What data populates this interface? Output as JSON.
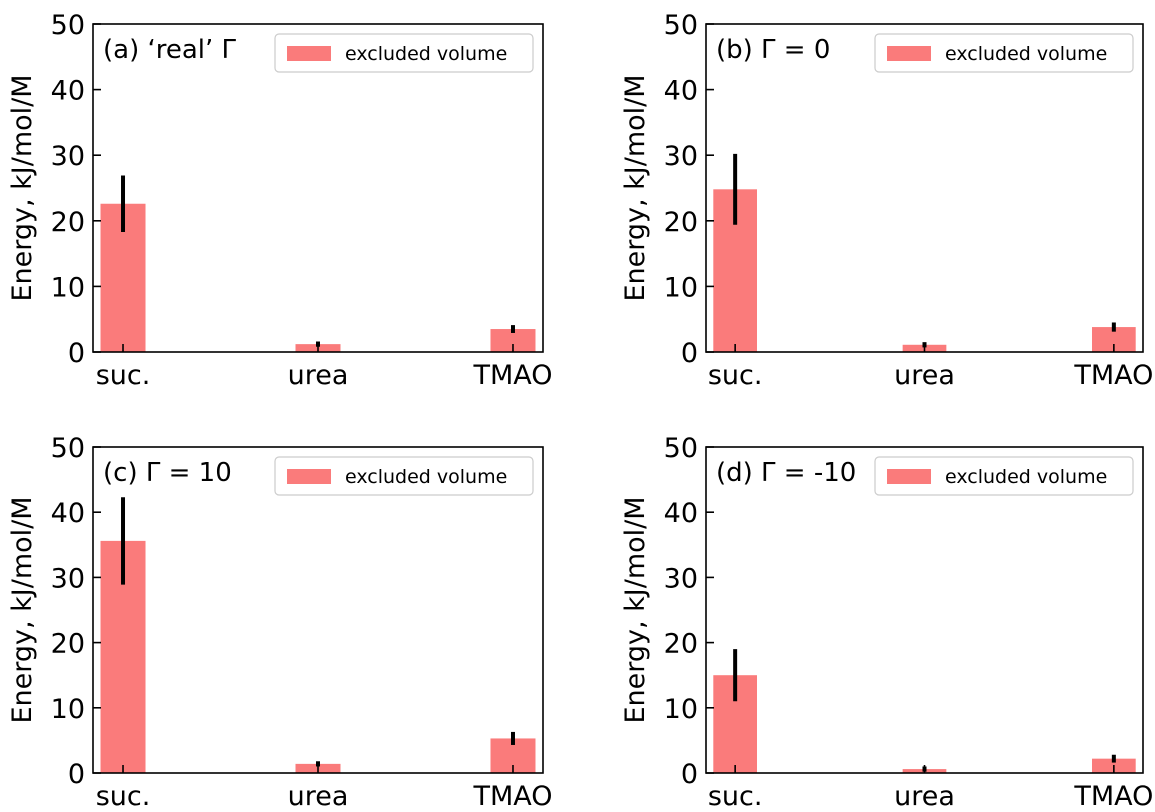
{
  "chart_data": [
    {
      "type": "bar",
      "panel_label": "(a) ‘real’ Γ",
      "categories": [
        "suc.",
        "urea",
        "TMAO"
      ],
      "series": [
        {
          "name": "excluded volume",
          "values": [
            22.6,
            1.2,
            3.5
          ],
          "errors": [
            4.3,
            0.4,
            0.6
          ]
        }
      ],
      "ylabel": "Energy, kJ/mol/M",
      "ylim": [
        0,
        50
      ],
      "yticks": [
        0,
        10,
        20,
        30,
        40,
        50
      ],
      "legend_placement": "top-right",
      "grid": false,
      "bar_color": "#fa7b7b",
      "error_color": "#000000"
    },
    {
      "type": "bar",
      "panel_label": "(b) Γ = 0",
      "categories": [
        "suc.",
        "urea",
        "TMAO"
      ],
      "series": [
        {
          "name": "excluded volume",
          "values": [
            24.8,
            1.1,
            3.8
          ],
          "errors": [
            5.4,
            0.4,
            0.7
          ]
        }
      ],
      "ylabel": "Energy, kJ/mol/M",
      "ylim": [
        0,
        50
      ],
      "yticks": [
        0,
        10,
        20,
        30,
        40,
        50
      ],
      "legend_placement": "top-right",
      "grid": false,
      "bar_color": "#fa7b7b",
      "error_color": "#000000"
    },
    {
      "type": "bar",
      "panel_label": "(c) Γ = 10",
      "categories": [
        "suc.",
        "urea",
        "TMAO"
      ],
      "series": [
        {
          "name": "excluded volume",
          "values": [
            35.6,
            1.4,
            5.3
          ],
          "errors": [
            6.7,
            0.4,
            1.0
          ]
        }
      ],
      "ylabel": "Energy, kJ/mol/M",
      "ylim": [
        0,
        50
      ],
      "yticks": [
        0,
        10,
        20,
        30,
        40,
        50
      ],
      "legend_placement": "top-right",
      "grid": false,
      "bar_color": "#fa7b7b",
      "error_color": "#000000"
    },
    {
      "type": "bar",
      "panel_label": "(d) Γ = -10",
      "categories": [
        "suc.",
        "urea",
        "TMAO"
      ],
      "series": [
        {
          "name": "excluded volume",
          "values": [
            15.0,
            0.6,
            2.2
          ],
          "errors": [
            4.0,
            0.4,
            0.6
          ]
        }
      ],
      "ylabel": "Energy, kJ/mol/M",
      "ylim": [
        0,
        50
      ],
      "yticks": [
        0,
        10,
        20,
        30,
        40,
        50
      ],
      "legend_placement": "top-right",
      "grid": false,
      "bar_color": "#fa7b7b",
      "error_color": "#000000"
    }
  ]
}
